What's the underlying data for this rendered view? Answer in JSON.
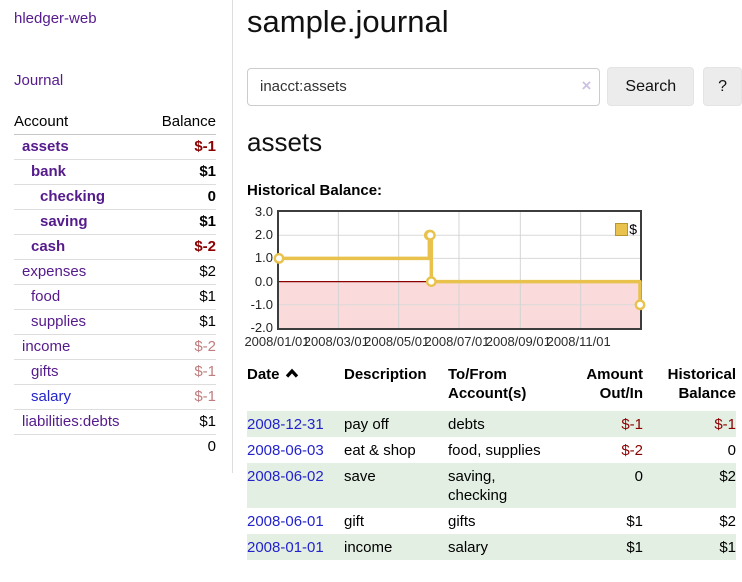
{
  "app": {
    "brand": "hledger-web"
  },
  "sidebar": {
    "journal_label": "Journal",
    "accounts_table": {
      "headers": {
        "account": "Account",
        "balance": "Balance"
      },
      "rows": [
        {
          "name": "assets",
          "indent": 0,
          "bold": true,
          "link": "purple",
          "balance": "$-1",
          "tone": "neg-strong"
        },
        {
          "name": "bank",
          "indent": 1,
          "bold": true,
          "link": "purple",
          "balance": "$1",
          "tone": ""
        },
        {
          "name": "checking",
          "indent": 2,
          "bold": true,
          "link": "purple",
          "balance": "0",
          "tone": ""
        },
        {
          "name": "saving",
          "indent": 2,
          "bold": true,
          "link": "purple",
          "balance": "$1",
          "tone": ""
        },
        {
          "name": "cash",
          "indent": 1,
          "bold": true,
          "link": "purple",
          "balance": "$-2",
          "tone": "neg-strong"
        },
        {
          "name": "expenses",
          "indent": 0,
          "bold": false,
          "link": "purple",
          "balance": "$2",
          "tone": ""
        },
        {
          "name": "food",
          "indent": 1,
          "bold": false,
          "link": "purple",
          "balance": "$1",
          "tone": ""
        },
        {
          "name": "supplies",
          "indent": 1,
          "bold": false,
          "link": "purple",
          "balance": "$1",
          "tone": ""
        },
        {
          "name": "income",
          "indent": 0,
          "bold": false,
          "link": "purple",
          "balance": "$-2",
          "tone": "neg-soft"
        },
        {
          "name": "gifts",
          "indent": 1,
          "bold": false,
          "link": "purple",
          "balance": "$-1",
          "tone": "neg-soft"
        },
        {
          "name": "salary",
          "indent": 1,
          "bold": false,
          "link": "blue",
          "balance": "$-1",
          "tone": "neg-soft"
        },
        {
          "name": "liabilities:debts",
          "indent": 0,
          "bold": false,
          "link": "purple",
          "balance": "$1",
          "tone": ""
        }
      ],
      "total": "0"
    }
  },
  "main": {
    "title": "sample.journal",
    "search": {
      "value": "inacct:assets",
      "clear_icon": "×",
      "button_label": "Search",
      "help_label": "?"
    },
    "account_heading": "assets"
  },
  "chart_data": {
    "type": "line",
    "title": "Historical Balance:",
    "step": "after",
    "series": [
      {
        "name": "$",
        "color": "#e9c24d",
        "points": [
          [
            "2008-01-01",
            1
          ],
          [
            "2008-06-01",
            2
          ],
          [
            "2008-06-02",
            2
          ],
          [
            "2008-06-03",
            0
          ],
          [
            "2008-12-31",
            -1
          ]
        ]
      }
    ],
    "x_range": [
      "2008-01-01",
      "2008-12-31"
    ],
    "x_ticks": [
      "2008/01/01",
      "2008/03/01",
      "2008/05/01",
      "2008/07/01",
      "2008/09/01",
      "2008/11/01"
    ],
    "ylim": [
      -2,
      3
    ],
    "y_ticks": [
      "3.0",
      "2.0",
      "1.0",
      "0.0",
      "-1.0",
      "-2.0"
    ],
    "grid": true,
    "negative_fill": "#fadada",
    "zero_line_color": "#8b0000",
    "legend_position": "top-right"
  },
  "register": {
    "headers": {
      "date": "Date",
      "description": "Description",
      "account": "To/From Account(s)",
      "amount": "Amount Out/In",
      "balance": "Historical Balance"
    },
    "sort": "date-ascending",
    "rows": [
      {
        "date": "2008-12-31",
        "description": "pay off",
        "accounts": "debts",
        "amount": "$-1",
        "amount_neg": true,
        "balance": "$-1",
        "balance_neg": true,
        "highlight": true
      },
      {
        "date": "2008-06-03",
        "description": "eat & shop",
        "accounts": "food, supplies",
        "amount": "$-2",
        "amount_neg": true,
        "balance": "0",
        "balance_neg": false,
        "highlight": false
      },
      {
        "date": "2008-06-02",
        "description": "save",
        "accounts": "saving,\nchecking",
        "amount": "0",
        "amount_neg": false,
        "balance": "$2",
        "balance_neg": false,
        "highlight": true
      },
      {
        "date": "2008-06-01",
        "description": "gift",
        "accounts": "gifts",
        "amount": "$1",
        "amount_neg": false,
        "balance": "$2",
        "balance_neg": false,
        "highlight": false
      },
      {
        "date": "2008-01-01",
        "description": "income",
        "accounts": "salary",
        "amount": "$1",
        "amount_neg": false,
        "balance": "$1",
        "balance_neg": false,
        "highlight": true
      }
    ]
  }
}
